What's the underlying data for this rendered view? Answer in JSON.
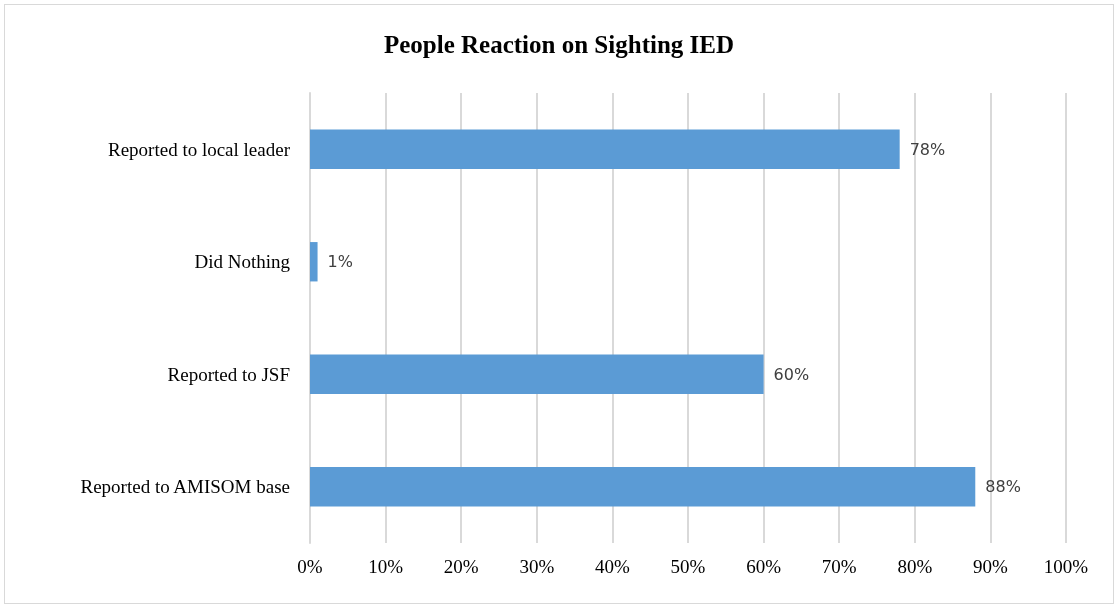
{
  "chart_data": {
    "type": "bar",
    "orientation": "horizontal",
    "title": "People Reaction on Sighting IED",
    "categories": [
      "Reported to local leader",
      "Did Nothing",
      "Reported to JSF",
      "Reported to AMISOM base"
    ],
    "values": [
      78,
      1,
      60,
      88
    ],
    "value_labels": [
      "78%",
      "1%",
      "60%",
      "88%"
    ],
    "color": "#5b9bd5",
    "xlim": [
      0,
      100
    ],
    "xticks": [
      {
        "value": 0,
        "label": "0%"
      },
      {
        "value": 10,
        "label": "10%"
      },
      {
        "value": 20,
        "label": "20%"
      },
      {
        "value": 30,
        "label": "30%"
      },
      {
        "value": 40,
        "label": "40%"
      },
      {
        "value": 50,
        "label": "50%"
      },
      {
        "value": 60,
        "label": "60%"
      },
      {
        "value": 70,
        "label": "70%"
      },
      {
        "value": 80,
        "label": "80%"
      },
      {
        "value": 90,
        "label": "90%"
      },
      {
        "value": 100,
        "label": "100%"
      }
    ],
    "grid": "x"
  }
}
